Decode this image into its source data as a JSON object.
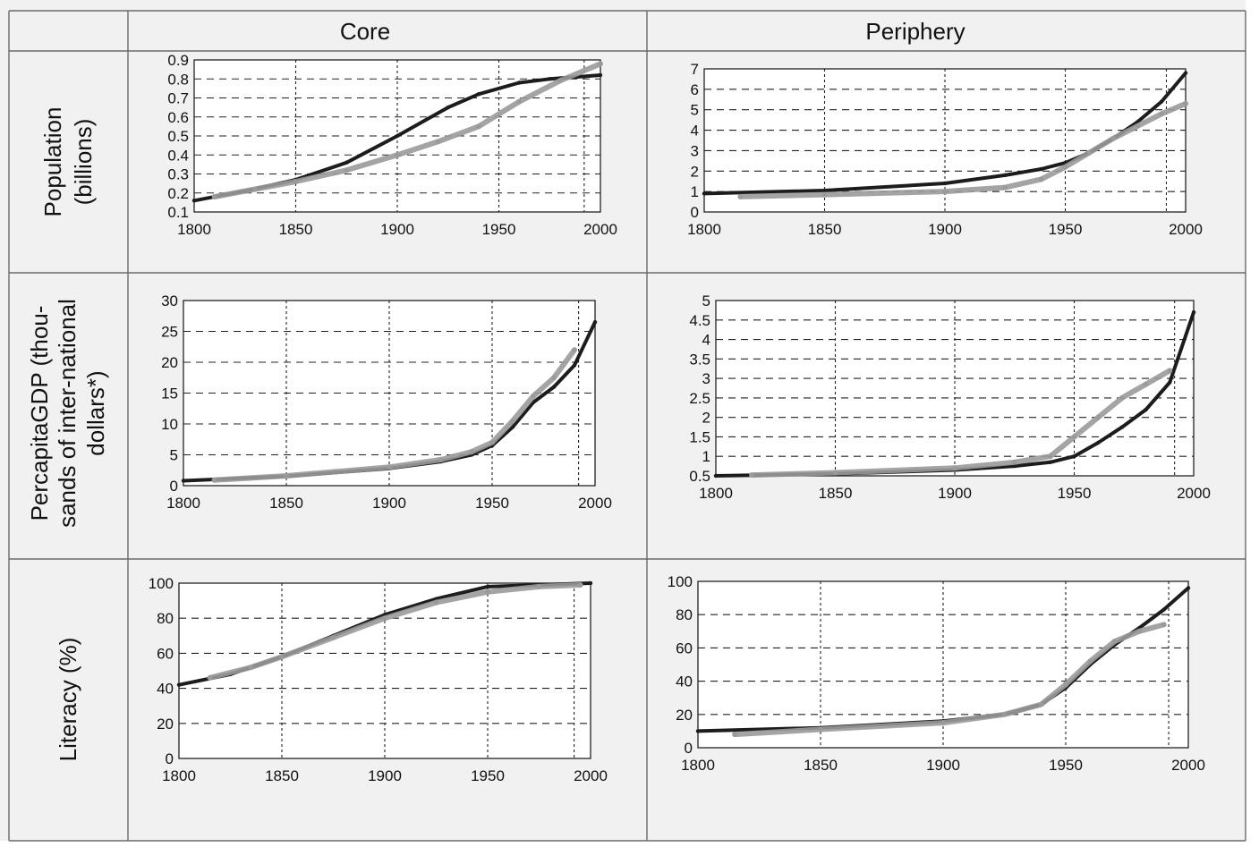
{
  "table": {
    "col_headers": [
      "Core",
      "Periphery"
    ],
    "row_labels": [
      [
        "Population",
        "(billions)"
      ],
      [
        "PercapitaGDP (thou-",
        "sands of inter-national",
        "dollars*)"
      ],
      [
        "Literacy (%)"
      ]
    ]
  },
  "colors": {
    "actual": "#1c1c1c",
    "simulated": "#9a9a9a",
    "grid": "#222222",
    "cell_background": "#f1f1f1",
    "plot_background": "#ffffff"
  },
  "chart_data": [
    {
      "id": "core-population",
      "type": "line",
      "xlim": [
        1800,
        2000
      ],
      "ylim": [
        0.1,
        0.9
      ],
      "x_ticks": [
        1800,
        1850,
        1900,
        1950,
        2000
      ],
      "y_ticks": [
        0.1,
        0.2,
        0.3,
        0.4,
        0.5,
        0.6,
        0.7,
        0.8,
        0.9
      ],
      "y_tick_labels": [
        "0.1",
        "0.2",
        "0.3",
        "0.4",
        "0.5",
        "0.6",
        "0.7",
        "0.8",
        "0.9"
      ],
      "grid": true,
      "series": [
        {
          "style": "actual",
          "x": [
            1800,
            1825,
            1850,
            1875,
            1900,
            1925,
            1940,
            1960,
            1975,
            2000
          ],
          "y": [
            0.16,
            0.21,
            0.27,
            0.36,
            0.5,
            0.65,
            0.72,
            0.78,
            0.8,
            0.82
          ]
        },
        {
          "style": "simulated",
          "x": [
            1810,
            1830,
            1850,
            1875,
            1900,
            1920,
            1940,
            1960,
            1980,
            2000
          ],
          "y": [
            0.18,
            0.22,
            0.26,
            0.32,
            0.4,
            0.47,
            0.55,
            0.68,
            0.79,
            0.88
          ]
        }
      ]
    },
    {
      "id": "periphery-population",
      "type": "line",
      "xlim": [
        1800,
        2000
      ],
      "ylim": [
        0,
        7
      ],
      "x_ticks": [
        1800,
        1850,
        1900,
        1950,
        2000
      ],
      "y_ticks": [
        0,
        1,
        2,
        3,
        4,
        5,
        6,
        7
      ],
      "y_tick_labels": [
        "0",
        "1",
        "2",
        "3",
        "4",
        "5",
        "6",
        "7"
      ],
      "grid": true,
      "series": [
        {
          "style": "actual",
          "x": [
            1800,
            1850,
            1900,
            1925,
            1940,
            1950,
            1960,
            1970,
            1980,
            1990,
            2000
          ],
          "y": [
            0.9,
            1.05,
            1.4,
            1.8,
            2.1,
            2.4,
            2.9,
            3.6,
            4.4,
            5.4,
            6.8
          ]
        },
        {
          "style": "simulated",
          "x": [
            1815,
            1850,
            1900,
            1925,
            1940,
            1950,
            1960,
            1970,
            1980,
            1990,
            2000
          ],
          "y": [
            0.75,
            0.85,
            1.0,
            1.2,
            1.6,
            2.2,
            2.9,
            3.6,
            4.2,
            4.8,
            5.3
          ]
        }
      ]
    },
    {
      "id": "core-gdp",
      "type": "line",
      "xlim": [
        1800,
        2000
      ],
      "ylim": [
        0,
        30
      ],
      "x_ticks": [
        1800,
        1850,
        1900,
        1950,
        2000
      ],
      "y_ticks": [
        0,
        5,
        10,
        15,
        20,
        25,
        30
      ],
      "y_tick_labels": [
        "0",
        "5",
        "10",
        "15",
        "20",
        "25",
        "30"
      ],
      "grid": true,
      "series": [
        {
          "style": "actual",
          "x": [
            1800,
            1850,
            1900,
            1925,
            1940,
            1950,
            1960,
            1970,
            1980,
            1990,
            2000
          ],
          "y": [
            0.8,
            1.5,
            2.8,
            3.9,
            5.0,
            6.5,
            9.5,
            13.5,
            16.0,
            19.5,
            26.5
          ]
        },
        {
          "style": "simulated",
          "x": [
            1815,
            1850,
            1900,
            1925,
            1940,
            1950,
            1960,
            1970,
            1980,
            1990
          ],
          "y": [
            0.9,
            1.6,
            3.0,
            4.2,
            5.5,
            7.0,
            10.5,
            14.5,
            17.5,
            22.0
          ]
        }
      ]
    },
    {
      "id": "periphery-gdp",
      "type": "line",
      "xlim": [
        1800,
        2000
      ],
      "ylim": [
        0.5,
        5
      ],
      "x_ticks": [
        1800,
        1850,
        1900,
        1950,
        2000
      ],
      "y_ticks": [
        0.5,
        1,
        1.5,
        2,
        2.5,
        3,
        3.5,
        4,
        4.5,
        5
      ],
      "y_tick_labels": [
        "0.5",
        "1",
        "1.5",
        "2",
        "2.5",
        "3",
        "3.5",
        "4",
        "4.5",
        "5"
      ],
      "grid": true,
      "series": [
        {
          "style": "actual",
          "x": [
            1800,
            1850,
            1900,
            1925,
            1940,
            1950,
            1960,
            1970,
            1980,
            1990,
            2000
          ],
          "y": [
            0.5,
            0.55,
            0.65,
            0.75,
            0.85,
            1.0,
            1.35,
            1.75,
            2.2,
            2.9,
            4.7
          ]
        },
        {
          "style": "simulated",
          "x": [
            1815,
            1850,
            1900,
            1925,
            1940,
            1950,
            1960,
            1970,
            1980,
            1990
          ],
          "y": [
            0.52,
            0.58,
            0.7,
            0.85,
            1.0,
            1.5,
            2.0,
            2.5,
            2.85,
            3.2
          ]
        }
      ]
    },
    {
      "id": "core-literacy",
      "type": "line",
      "xlim": [
        1800,
        2000
      ],
      "ylim": [
        0,
        100
      ],
      "x_ticks": [
        1800,
        1850,
        1900,
        1950,
        2000
      ],
      "y_ticks": [
        0,
        20,
        40,
        60,
        80,
        100
      ],
      "y_tick_labels": [
        "0",
        "20",
        "40",
        "60",
        "80",
        "100"
      ],
      "grid": true,
      "series": [
        {
          "style": "actual",
          "x": [
            1800,
            1825,
            1850,
            1875,
            1900,
            1925,
            1950,
            1975,
            2000
          ],
          "y": [
            42,
            48,
            58,
            70,
            82,
            91,
            98,
            99,
            100
          ]
        },
        {
          "style": "simulated",
          "x": [
            1815,
            1835,
            1850,
            1875,
            1900,
            1925,
            1950,
            1975,
            1995
          ],
          "y": [
            46,
            52,
            58,
            69,
            80,
            89,
            95,
            98,
            99
          ]
        }
      ]
    },
    {
      "id": "periphery-literacy",
      "type": "line",
      "xlim": [
        1800,
        2000
      ],
      "ylim": [
        0,
        100
      ],
      "x_ticks": [
        1800,
        1850,
        1900,
        1950,
        2000
      ],
      "y_ticks": [
        0,
        20,
        40,
        60,
        80,
        100
      ],
      "y_tick_labels": [
        "0",
        "20",
        "40",
        "60",
        "80",
        "100"
      ],
      "grid": true,
      "series": [
        {
          "style": "actual",
          "x": [
            1800,
            1850,
            1900,
            1925,
            1940,
            1950,
            1960,
            1970,
            1980,
            1990,
            2000
          ],
          "y": [
            10,
            12,
            16,
            20,
            26,
            36,
            50,
            62,
            72,
            83,
            96
          ]
        },
        {
          "style": "simulated",
          "x": [
            1815,
            1850,
            1900,
            1925,
            1940,
            1950,
            1960,
            1970,
            1980,
            1990
          ],
          "y": [
            8,
            11,
            15,
            20,
            26,
            38,
            52,
            64,
            70,
            74
          ]
        }
      ]
    }
  ]
}
